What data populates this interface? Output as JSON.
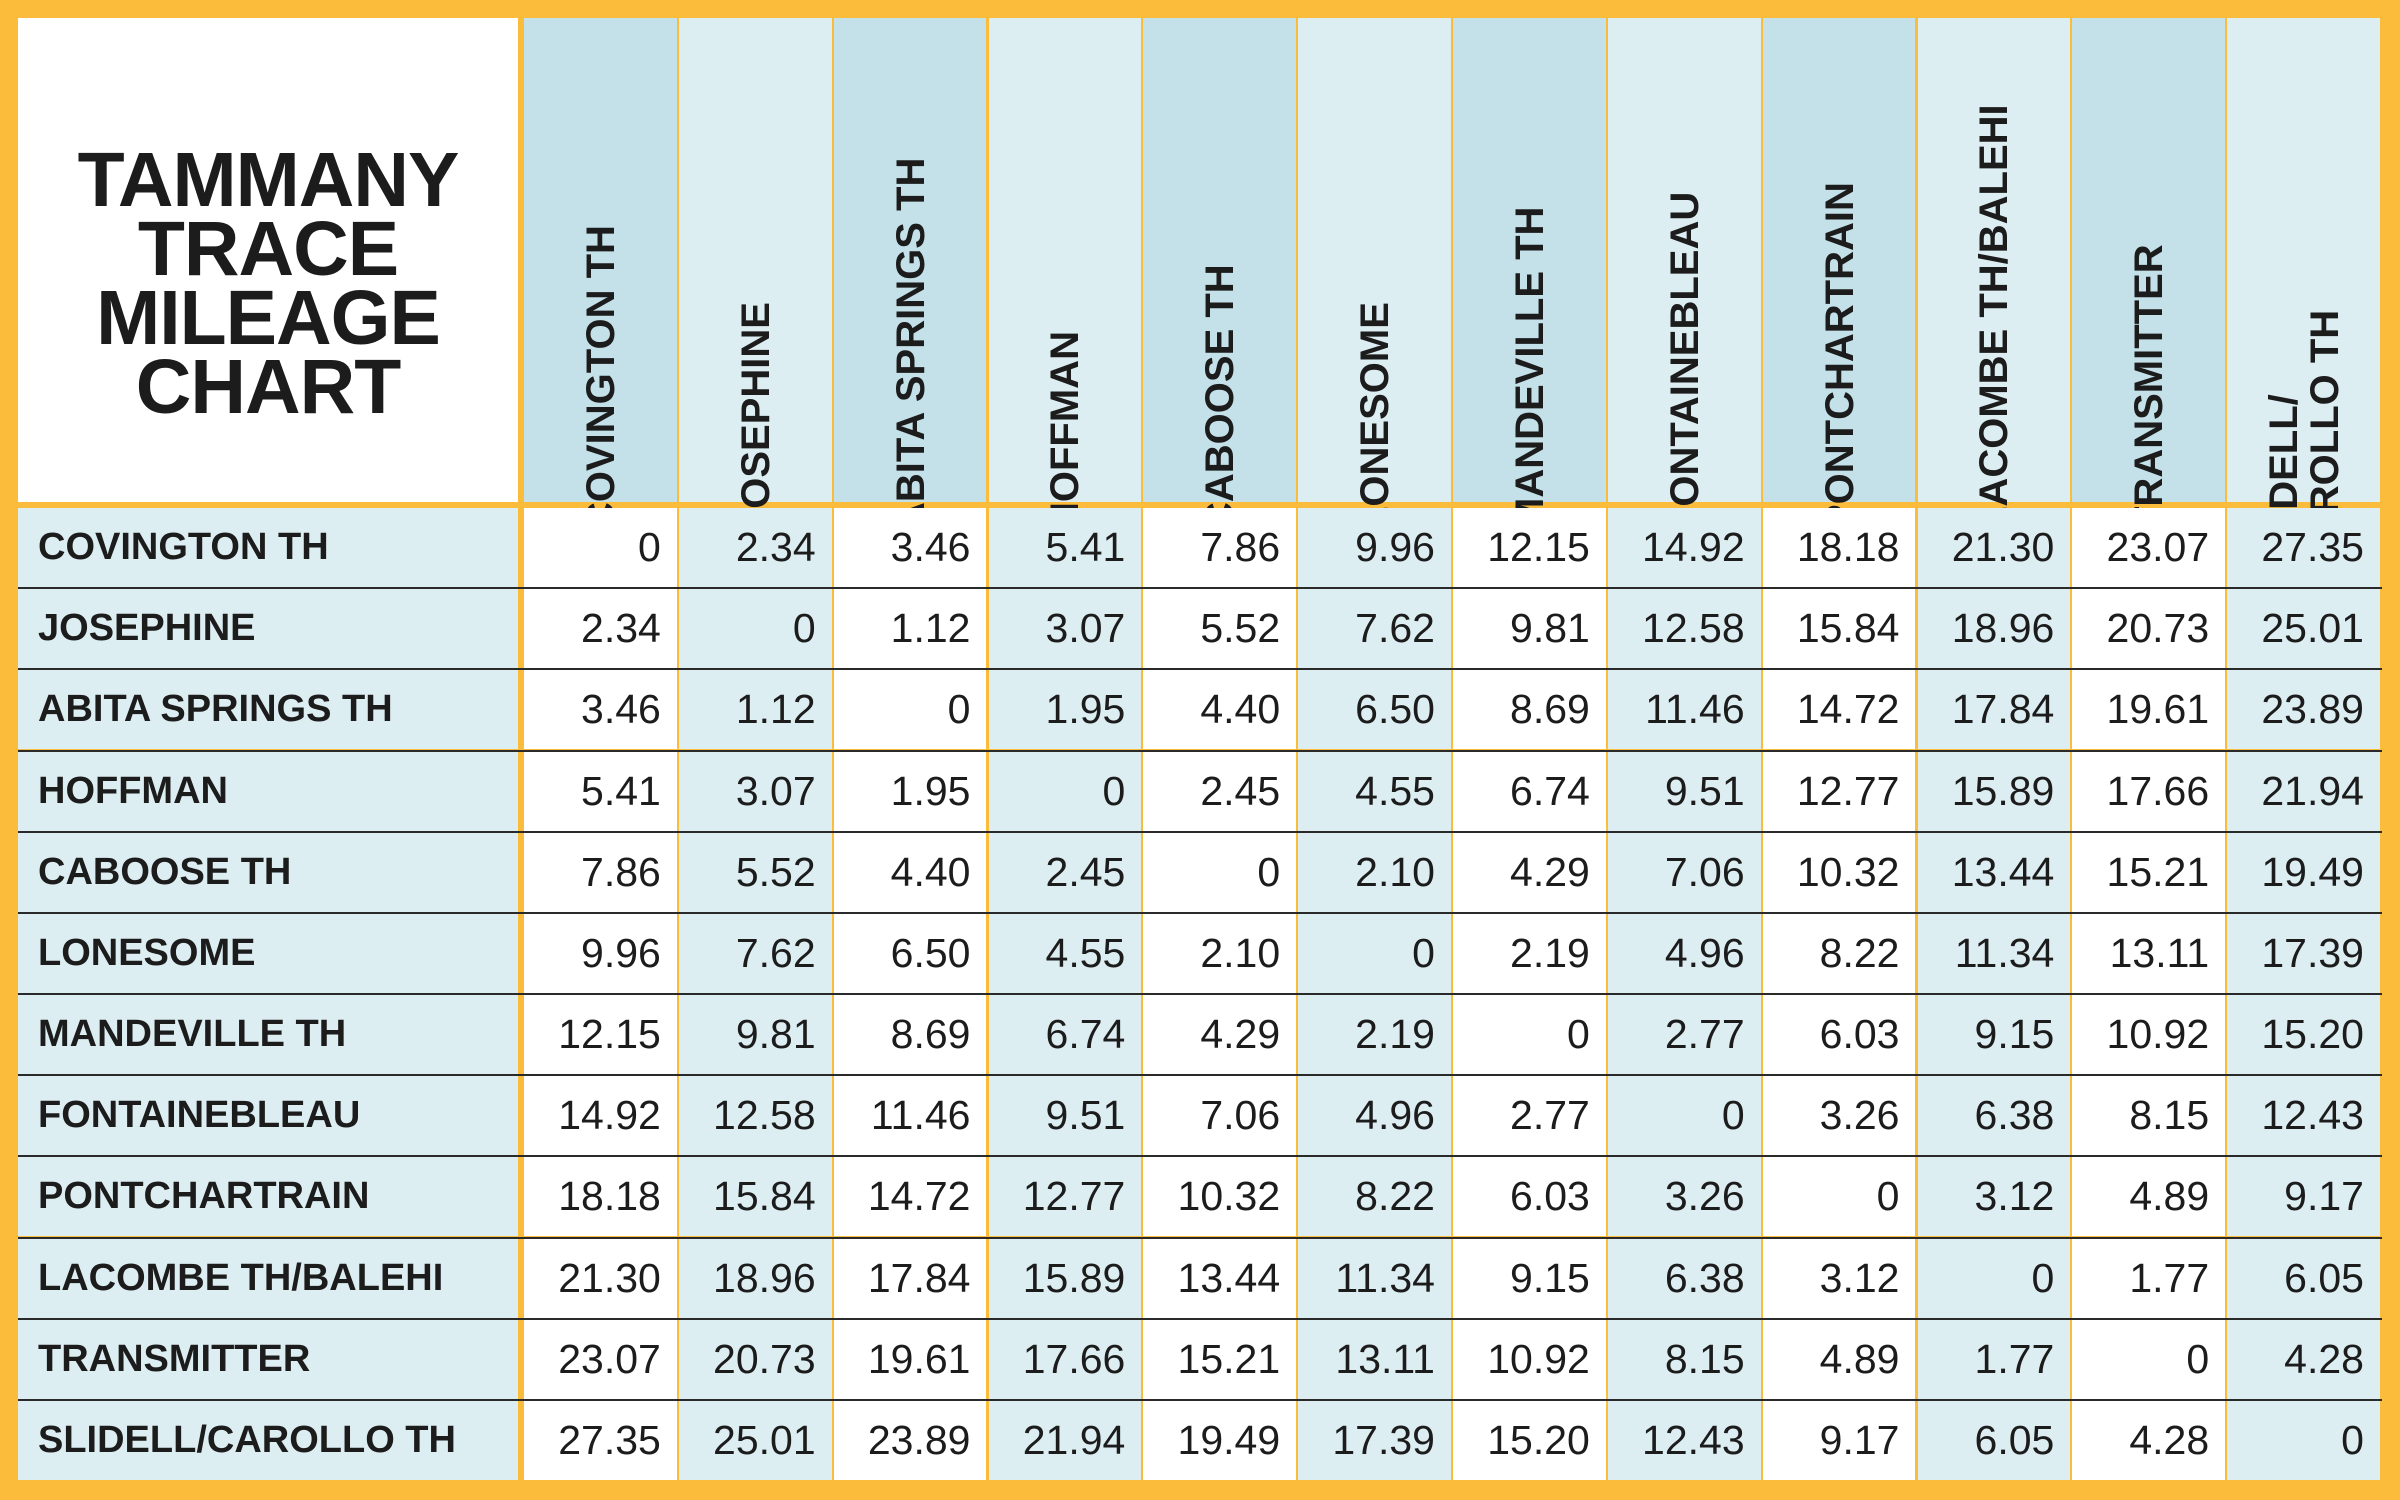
{
  "chart_data": {
    "type": "table",
    "title": "TAMMANY TRACE MILEAGE CHART",
    "title_lines": [
      "TAMMANY",
      "TRACE",
      "MILEAGE",
      "CHART"
    ],
    "columns": [
      "COVINGTON TH",
      "JOSEPHINE",
      "ABITA SPRINGS TH",
      "HOFFMAN",
      "CABOOSE TH",
      "LONESOME",
      "MANDEVILLE TH",
      "FONTAINEBLEAU",
      "PONTCHARTRAIN",
      "LACOMBE TH/BALEHI",
      "TRANSMITTER",
      "SLIDELL/\nCAROLLO TH"
    ],
    "rows": [
      "COVINGTON TH",
      "JOSEPHINE",
      "ABITA SPRINGS TH",
      "HOFFMAN",
      "CABOOSE TH",
      "LONESOME",
      "MANDEVILLE TH",
      "FONTAINEBLEAU",
      "PONTCHARTRAIN",
      "LACOMBE TH/BALEHI",
      "TRANSMITTER",
      "SLIDELL/CAROLLO TH"
    ],
    "values": [
      [
        "0",
        "2.34",
        "3.46",
        "5.41",
        "7.86",
        "9.96",
        "12.15",
        "14.92",
        "18.18",
        "21.30",
        "23.07",
        "27.35"
      ],
      [
        "2.34",
        "0",
        "1.12",
        "3.07",
        "5.52",
        "7.62",
        "9.81",
        "12.58",
        "15.84",
        "18.96",
        "20.73",
        "25.01"
      ],
      [
        "3.46",
        "1.12",
        "0",
        "1.95",
        "4.40",
        "6.50",
        "8.69",
        "11.46",
        "14.72",
        "17.84",
        "19.61",
        "23.89"
      ],
      [
        "5.41",
        "3.07",
        "1.95",
        "0",
        "2.45",
        "4.55",
        "6.74",
        "9.51",
        "12.77",
        "15.89",
        "17.66",
        "21.94"
      ],
      [
        "7.86",
        "5.52",
        "4.40",
        "2.45",
        "0",
        "2.10",
        "4.29",
        "7.06",
        "10.32",
        "13.44",
        "15.21",
        "19.49"
      ],
      [
        "9.96",
        "7.62",
        "6.50",
        "4.55",
        "2.10",
        "0",
        "2.19",
        "4.96",
        "8.22",
        "11.34",
        "13.11",
        "17.39"
      ],
      [
        "12.15",
        "9.81",
        "8.69",
        "6.74",
        "4.29",
        "2.19",
        "0",
        "2.77",
        "6.03",
        "9.15",
        "10.92",
        "15.20"
      ],
      [
        "14.92",
        "12.58",
        "11.46",
        "9.51",
        "7.06",
        "4.96",
        "2.77",
        "0",
        "3.26",
        "6.38",
        "8.15",
        "12.43"
      ],
      [
        "18.18",
        "15.84",
        "14.72",
        "12.77",
        "10.32",
        "8.22",
        "6.03",
        "3.26",
        "0",
        "3.12",
        "4.89",
        "9.17"
      ],
      [
        "21.30",
        "18.96",
        "17.84",
        "15.89",
        "13.44",
        "11.34",
        "9.15",
        "6.38",
        "3.12",
        "0",
        "1.77",
        "6.05"
      ],
      [
        "23.07",
        "20.73",
        "19.61",
        "17.66",
        "15.21",
        "13.11",
        "10.92",
        "8.15",
        "4.89",
        "1.77",
        "0",
        "4.28"
      ],
      [
        "27.35",
        "25.01",
        "23.89",
        "21.94",
        "19.49",
        "17.39",
        "15.20",
        "12.43",
        "9.17",
        "6.05",
        "4.28",
        "0"
      ]
    ],
    "colors": {
      "border": "#fbbc3b",
      "header_dark": "#c4e1ea",
      "header_light": "#ddeef3",
      "cell_band": "#ddeef3",
      "cell_plain": "#ffffff",
      "text": "#1c1c1c",
      "rule": "#2a2a2a"
    }
  }
}
